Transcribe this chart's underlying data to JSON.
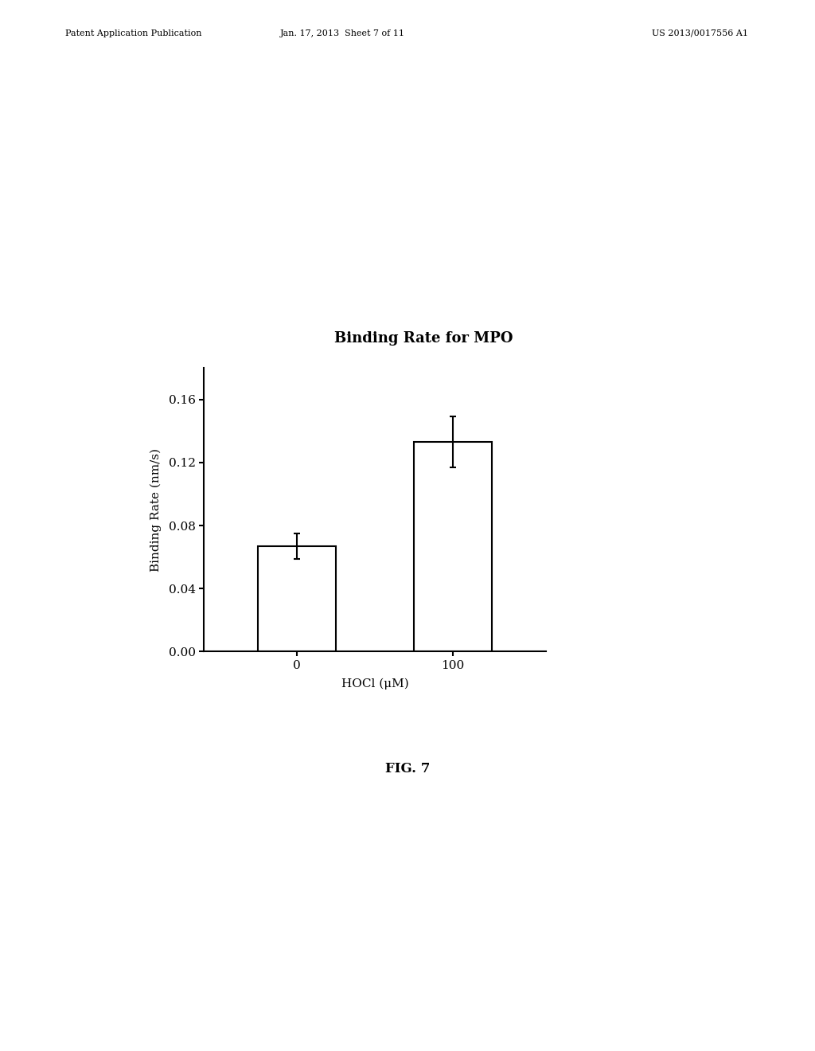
{
  "title": "Binding Rate for MPO",
  "categories": [
    "0",
    "100"
  ],
  "values": [
    0.067,
    0.133
  ],
  "errors": [
    0.008,
    0.016
  ],
  "xlabel": "HOCl (μM)",
  "ylabel": "Binding Rate (nm/s)",
  "ylim": [
    0.0,
    0.18
  ],
  "yticks": [
    0.0,
    0.04,
    0.08,
    0.12,
    0.16
  ],
  "bar_color": "#ffffff",
  "bar_edgecolor": "#000000",
  "background_color": "#ffffff",
  "fig_caption": "FIG. 7",
  "header_left": "Patent Application Publication",
  "header_center": "Jan. 17, 2013  Sheet 7 of 11",
  "header_right": "US 2013/0017556 A1",
  "bar_width": 0.5,
  "title_fontsize": 13,
  "axis_fontsize": 11,
  "tick_fontsize": 11
}
